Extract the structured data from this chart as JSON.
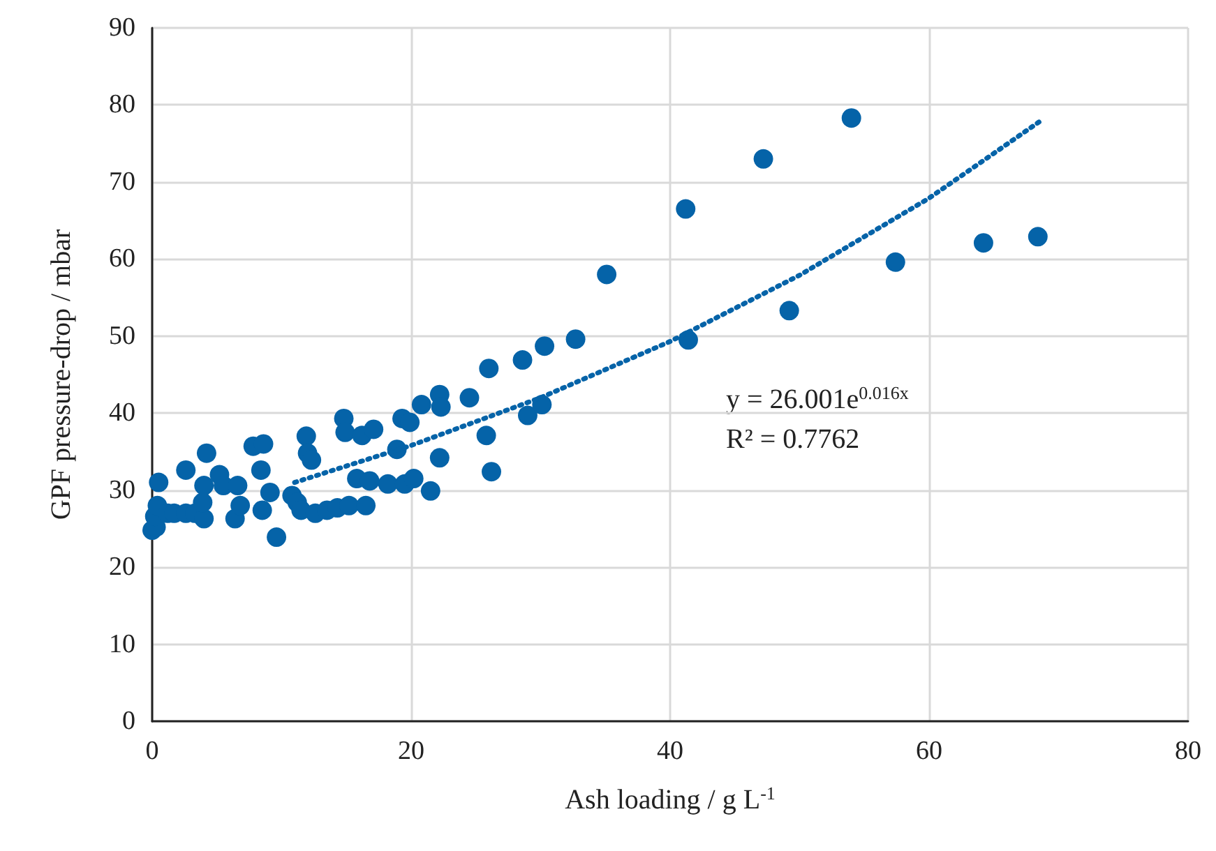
{
  "chart_data": {
    "type": "scatter",
    "xlabel": "Ash loading / g L$^{-1}$",
    "ylabel": "GPF pressure-drop / mbar",
    "xlim": [
      0,
      80
    ],
    "xticks": [
      0,
      20,
      40,
      60,
      80
    ],
    "ylim": [
      0,
      90
    ],
    "yticks": [
      0,
      10,
      20,
      30,
      40,
      50,
      60,
      70,
      80,
      90
    ],
    "grid": true,
    "marker": "circle",
    "annotations": [
      "y = 26.001e$^{0.016x}$",
      "R² = 0.7762"
    ],
    "series": [
      {
        "color": "#0563a8",
        "x": [
          0,
          0.3,
          0.2,
          0.4,
          0.5,
          1.2,
          1.7,
          2.6,
          2.6,
          3.3,
          4,
          3.9,
          4,
          4.2,
          5.2,
          5.5,
          6.4,
          6.6,
          6.8,
          7.8,
          8.6,
          8.4,
          8.5,
          9.1,
          9.6,
          10.8,
          11.2,
          11.5,
          11.9,
          12,
          12.3,
          12.6,
          13.5,
          14.3,
          14.8,
          14.9,
          15.2,
          15.8,
          16.2,
          16.5,
          16.8,
          17.1,
          18.2,
          18.9,
          19.3,
          19.5,
          19.9,
          20.2,
          20.8,
          21.5,
          22.2,
          22.3,
          22.2,
          24.5,
          25.8,
          26.2,
          26,
          28.6,
          29,
          30.1,
          30.3,
          32.7,
          35.1,
          41.2,
          41.4,
          47.2,
          49.2,
          54,
          57.4,
          64.2,
          68.4
        ],
        "values": [
          24.8,
          25.2,
          26.6,
          28,
          31,
          27,
          27,
          27,
          32.6,
          27,
          26.3,
          28.4,
          30.6,
          34.8,
          32,
          30.6,
          26.3,
          30.6,
          28,
          35.7,
          36,
          32.6,
          27.4,
          29.7,
          23.9,
          29.3,
          28.4,
          27.4,
          37,
          34.8,
          33.9,
          27,
          27.4,
          27.7,
          39.3,
          37.5,
          28,
          31.5,
          37.1,
          28,
          31.2,
          37.9,
          30.8,
          35.3,
          39.3,
          30.8,
          38.8,
          31.5,
          41.1,
          29.9,
          42.4,
          40.8,
          34.2,
          42,
          37.1,
          32.4,
          45.8,
          46.9,
          39.7,
          41.1,
          48.7,
          49.6,
          58,
          66.5,
          49.5,
          73,
          53.3,
          78.3,
          59.6,
          62.1,
          62.9
        ]
      },
      {
        "type": "line",
        "color": "#0563a8",
        "line_style": "dotted",
        "marker": "none",
        "x": [
          11,
          20,
          30,
          40,
          50,
          60,
          68.5
        ],
        "values": [
          31.0,
          35.8,
          42.0,
          49.3,
          57.9,
          67.9,
          77.8
        ]
      }
    ]
  }
}
